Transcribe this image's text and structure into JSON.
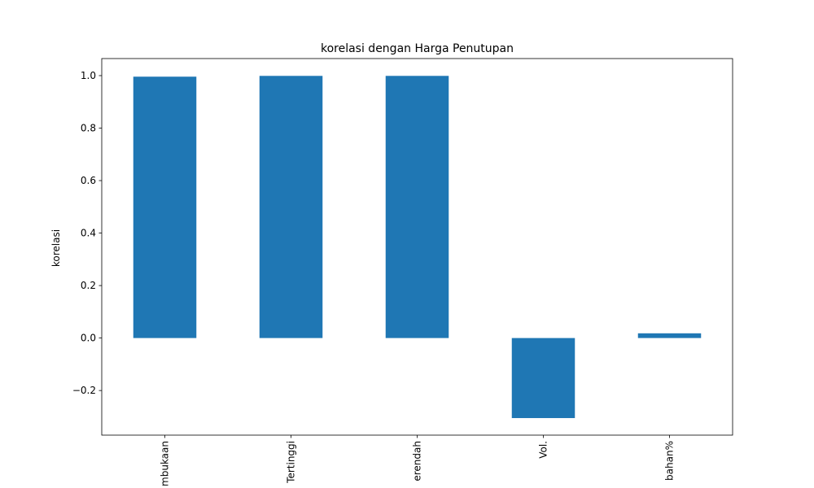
{
  "chart_data": {
    "type": "bar",
    "title": "korelasi dengan Harga Penutupan",
    "ylabel": "korelasi",
    "xlabel": "",
    "categories": [
      "Pembukaan",
      "Tertinggi",
      "Terendah",
      "Vol.",
      "Perubahan%"
    ],
    "tick_labels_visible": [
      "mbukaan",
      "Tertinggi",
      "erendah",
      "Vol.",
      "bahan%"
    ],
    "values": [
      0.996,
      0.999,
      0.999,
      -0.305,
      0.018
    ],
    "ylim": [
      -0.37,
      1.065
    ],
    "yticks": [
      -0.2,
      0.0,
      0.2,
      0.4,
      0.6,
      0.8,
      1.0
    ],
    "ytick_labels": [
      "−0.2",
      "0.0",
      "0.2",
      "0.4",
      "0.6",
      "0.8",
      "1.0"
    ],
    "bar_color": "#1f77b4",
    "grid": false,
    "legend": "none"
  }
}
